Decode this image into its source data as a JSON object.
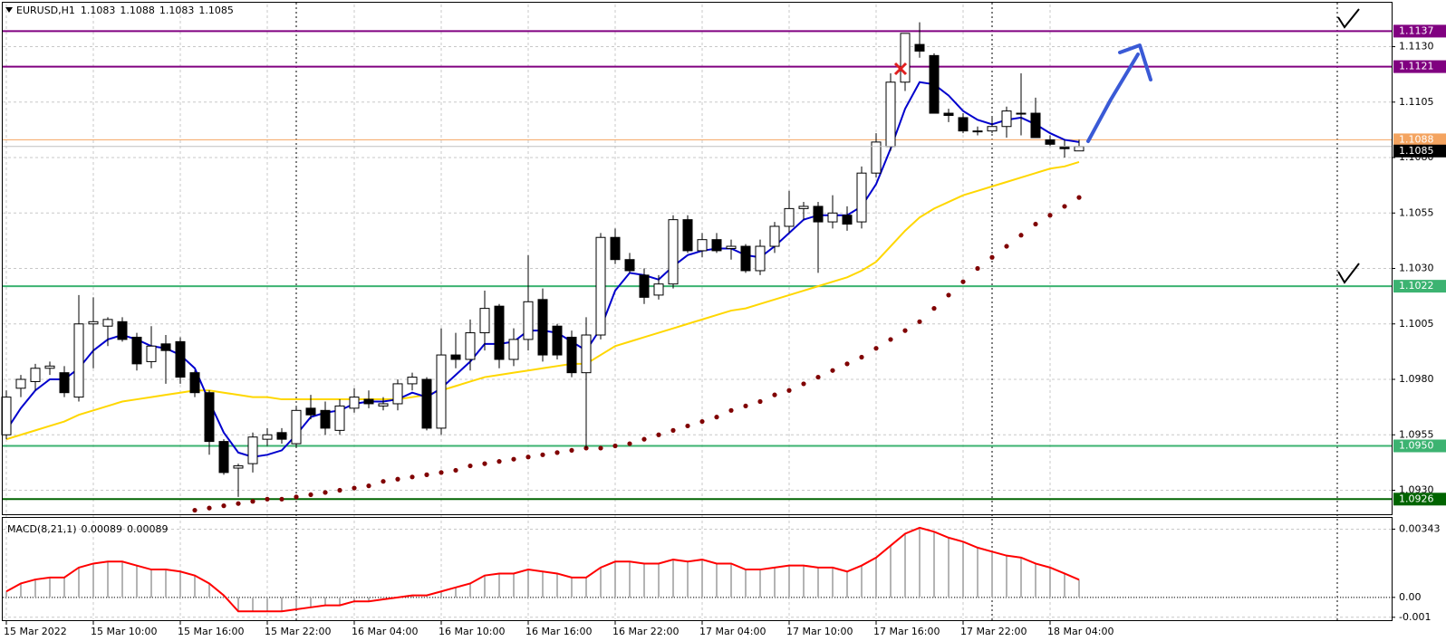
{
  "chart_data": [
    {
      "type": "candlestick",
      "symbol": "EURUSD,H1",
      "categories": [
        "15 Mar 2022",
        null,
        null,
        null,
        null,
        null,
        "15 Mar 10:00",
        null,
        null,
        null,
        null,
        null,
        "15 Mar 16:00",
        null,
        null,
        null,
        null,
        null,
        "15 Mar 22:00",
        null,
        null,
        null,
        null,
        null,
        "16 Mar 04:00",
        null,
        null,
        null,
        null,
        null,
        "16 Mar 10:00",
        null,
        null,
        null,
        null,
        null,
        "16 Mar 16:00",
        null,
        null,
        null,
        null,
        null,
        "16 Mar 22:00",
        null,
        null,
        null,
        null,
        null,
        "17 Mar 04:00",
        null,
        null,
        null,
        null,
        null,
        "17 Mar 10:00",
        null,
        null,
        null,
        null,
        null,
        "17 Mar 16:00",
        null,
        null,
        null,
        null,
        null,
        "17 Mar 22:00",
        null,
        null,
        null,
        null,
        null,
        "18 Mar 04:00",
        null,
        null
      ],
      "open": [
        1.0955,
        1.0976,
        1.0979,
        1.0985,
        1.0983,
        1.0972,
        1.1005,
        1.1004,
        1.1006,
        1.0999,
        1.0988,
        1.0996,
        1.0997,
        1.0983,
        1.0974,
        1.0952,
        1.094,
        1.0942,
        1.0953,
        1.0956,
        1.0951,
        1.0967,
        1.0966,
        1.0957,
        1.0967,
        1.0971,
        1.0968,
        1.0969,
        1.0978,
        1.098,
        1.0958,
        1.0991,
        1.0989,
        1.1001,
        1.1013,
        1.0989,
        1.0998,
        1.1016,
        1.1004,
        1.0999,
        1.0983,
        1.1,
        1.1044,
        1.1034,
        1.1027,
        1.1018,
        1.1023,
        1.1052,
        1.1038,
        1.1043,
        1.1039,
        1.104,
        1.1029,
        1.104,
        1.1049,
        1.1057,
        1.1058,
        1.1051,
        1.1054,
        1.1051,
        1.1073,
        1.1085,
        1.1114,
        1.1131,
        1.1126,
        1.11,
        1.1098,
        1.1092,
        1.1092,
        1.1094,
        1.11,
        1.11,
        1.1088,
        1.1085,
        1.1083
      ],
      "high": [
        1.0975,
        1.0982,
        1.0987,
        1.0988,
        1.0986,
        1.1018,
        1.1017,
        1.1008,
        1.1008,
        1.1001,
        1.1004,
        1.1,
        1.0999,
        1.0984,
        1.0975,
        1.0953,
        1.0942,
        1.0956,
        1.0958,
        1.0958,
        1.0968,
        1.0973,
        1.097,
        1.0971,
        1.0976,
        1.0975,
        1.0972,
        1.098,
        1.0983,
        1.0981,
        1.1003,
        1.1001,
        1.1007,
        1.102,
        1.1014,
        1.1003,
        1.1036,
        1.1021,
        1.1005,
        1.1002,
        1.1008,
        1.1046,
        1.1048,
        1.1037,
        1.103,
        1.1027,
        1.1054,
        1.1054,
        1.1046,
        1.1046,
        1.1043,
        1.1041,
        1.1043,
        1.1051,
        1.1065,
        1.106,
        1.106,
        1.1063,
        1.1058,
        1.1076,
        1.1091,
        1.1118,
        1.1136,
        1.1141,
        1.1127,
        1.1102,
        1.11,
        1.1094,
        1.1098,
        1.1103,
        1.1118,
        1.1107,
        1.109,
        1.1088,
        1.1088
      ],
      "low": [
        1.0953,
        1.0972,
        1.0975,
        1.0982,
        1.0972,
        1.097,
        1.0985,
        1.0995,
        1.0997,
        1.0984,
        1.0985,
        1.0978,
        1.0978,
        1.0972,
        1.0946,
        1.0937,
        1.0927,
        1.0938,
        1.095,
        1.0951,
        1.0949,
        1.0962,
        1.0955,
        1.0955,
        1.0965,
        1.0967,
        1.0966,
        1.0966,
        1.0975,
        1.0957,
        1.0955,
        1.0985,
        1.0984,
        1.0993,
        1.0985,
        1.0986,
        1.0993,
        1.0988,
        1.0989,
        1.0981,
        1.0949,
        1.0998,
        1.1032,
        1.1028,
        1.1014,
        1.1016,
        1.1021,
        1.1037,
        1.1035,
        1.1037,
        1.1034,
        1.1028,
        1.1027,
        1.1037,
        1.1046,
        1.1052,
        1.1028,
        1.1048,
        1.1047,
        1.1048,
        1.1071,
        1.1083,
        1.111,
        1.1125,
        1.11,
        1.1096,
        1.1091,
        1.109,
        1.1091,
        1.1089,
        1.109,
        1.1089,
        1.1085,
        1.108,
        1.1083
      ],
      "close": [
        1.0972,
        1.098,
        1.0985,
        1.0986,
        1.0974,
        1.1005,
        1.1006,
        1.1007,
        1.0998,
        1.0987,
        1.0995,
        1.0993,
        1.0981,
        1.0974,
        1.0952,
        1.0938,
        1.0941,
        1.0954,
        1.0955,
        1.0953,
        1.0966,
        1.0964,
        1.0958,
        1.0968,
        1.0972,
        1.0969,
        1.0969,
        1.0978,
        1.0981,
        1.0958,
        1.0991,
        1.0989,
        1.1001,
        1.1012,
        1.0989,
        1.0998,
        1.1015,
        1.0991,
        1.0991,
        1.0983,
        1.1,
        1.1044,
        1.1034,
        1.1029,
        1.1017,
        1.1023,
        1.1052,
        1.1038,
        1.1043,
        1.1038,
        1.104,
        1.1029,
        1.104,
        1.1049,
        1.1057,
        1.1058,
        1.1051,
        1.1055,
        1.105,
        1.1073,
        1.1087,
        1.1114,
        1.1136,
        1.1128,
        1.11,
        1.1099,
        1.1092,
        1.1092,
        1.1094,
        1.1101,
        1.11,
        1.1089,
        1.1086,
        1.1084,
        1.1085
      ],
      "up_color": "#ffffff",
      "down_color": "#000000",
      "wick_color": "#000000",
      "ma_fast": {
        "color": "#0000cd",
        "values": [
          1.0957,
          1.0967,
          1.0975,
          1.098,
          1.098,
          1.0985,
          1.0993,
          1.0998,
          1.1,
          1.0998,
          1.0995,
          1.0994,
          1.0991,
          1.0985,
          1.097,
          1.0956,
          1.0947,
          1.0945,
          1.0946,
          1.0948,
          1.0955,
          1.0963,
          1.0965,
          1.0966,
          1.0969,
          1.097,
          1.097,
          1.0971,
          1.0974,
          1.0972,
          1.0976,
          1.0982,
          1.0988,
          1.0996,
          1.0996,
          1.0997,
          1.1002,
          1.1002,
          1.1001,
          1.0997,
          1.0993,
          1.1003,
          1.102,
          1.1028,
          1.1027,
          1.1025,
          1.1031,
          1.1036,
          1.1038,
          1.1039,
          1.1039,
          1.1036,
          1.1035,
          1.104,
          1.1046,
          1.1052,
          1.1054,
          1.1054,
          1.1054,
          1.1058,
          1.1068,
          1.1084,
          1.1102,
          1.1114,
          1.1113,
          1.1108,
          1.1101,
          1.1097,
          1.1095,
          1.1097,
          1.1098,
          1.1095,
          1.1091,
          1.1088,
          1.1087
        ]
      },
      "ma_slow": {
        "color": "#ffd700",
        "values": [
          1.0953,
          1.0955,
          1.0957,
          1.0959,
          1.0961,
          1.0964,
          1.0966,
          1.0968,
          1.097,
          1.0971,
          1.0972,
          1.0973,
          1.0974,
          1.0975,
          1.0975,
          1.0974,
          1.0973,
          1.0972,
          1.0972,
          1.0971,
          1.0971,
          1.0971,
          1.0971,
          1.0971,
          1.0971,
          1.0971,
          1.0971,
          1.0971,
          1.0972,
          1.0973,
          1.0975,
          1.0977,
          1.0979,
          1.0981,
          1.0982,
          1.0983,
          1.0984,
          1.0985,
          1.0986,
          1.0987,
          1.0987,
          1.0991,
          1.0995,
          1.0997,
          1.0999,
          1.1001,
          1.1003,
          1.1005,
          1.1007,
          1.1009,
          1.1011,
          1.1012,
          1.1014,
          1.1016,
          1.1018,
          1.102,
          1.1022,
          1.1024,
          1.1026,
          1.1029,
          1.1033,
          1.104,
          1.1047,
          1.1053,
          1.1057,
          1.106,
          1.1063,
          1.1065,
          1.1067,
          1.1069,
          1.1071,
          1.1073,
          1.1075,
          1.1076,
          1.1078
        ]
      },
      "sar": {
        "color": "#800000",
        "values": [
          null,
          null,
          null,
          null,
          null,
          null,
          null,
          null,
          null,
          null,
          null,
          null,
          null,
          1.0921,
          1.0922,
          1.0923,
          1.0924,
          1.0925,
          1.0926,
          1.0926,
          1.0927,
          1.0928,
          1.0929,
          1.093,
          1.0931,
          1.0932,
          1.0934,
          1.0935,
          1.0936,
          1.0937,
          1.0938,
          1.0939,
          1.0941,
          1.0942,
          1.0943,
          1.0944,
          1.0945,
          1.0946,
          1.0947,
          1.0948,
          1.0949,
          1.0949,
          1.095,
          1.0951,
          1.0953,
          1.0955,
          1.0957,
          1.0959,
          1.0961,
          1.0963,
          1.0966,
          1.0968,
          1.097,
          1.0973,
          1.0975,
          1.0978,
          1.0981,
          1.0984,
          1.0987,
          1.099,
          1.0994,
          1.0998,
          1.1002,
          1.1006,
          1.1012,
          1.1018,
          1.1024,
          1.103,
          1.1035,
          1.104,
          1.1045,
          1.105,
          1.1054,
          1.1058,
          1.1062
        ]
      },
      "levels": [
        {
          "value": 1.1137,
          "color": "#800080"
        },
        {
          "value": 1.1121,
          "color": "#800080"
        },
        {
          "value": 1.1022,
          "color": "#3cb371"
        },
        {
          "value": 1.095,
          "label": "1.0950",
          "color": "#3cb371"
        },
        {
          "value": 1.0926,
          "color": "#006400"
        }
      ],
      "ask": {
        "value": 1.1088,
        "color": "#f4a460"
      },
      "ylim": [
        1.092,
        1.1149
      ],
      "yticks": [
        {
          "value": 1.093,
          "label": "1.0930"
        },
        1.0955,
        {
          "value": 1.098,
          "label": "1.0980"
        },
        1.1005,
        {
          "value": 1.103,
          "label": "1.1030"
        },
        1.1055,
        {
          "value": 1.108,
          "label": "1.1080"
        },
        1.1105,
        {
          "value": 1.113,
          "label": "1.1130"
        }
      ],
      "grid": true
    },
    {
      "type": "macd",
      "title": "MACD(8,21,1)",
      "color": "#ff0000",
      "bar_color": "#b4b4b4",
      "values": [
        0.0003,
        0.0007,
        0.0009,
        0.001,
        0.001,
        0.0015,
        0.0017,
        0.0018,
        0.0018,
        0.0016,
        0.0014,
        0.0014,
        0.0013,
        0.0011,
        0.0007,
        0.0001,
        -0.0007,
        -0.0007,
        -0.0007,
        -0.0007,
        -0.0006,
        -0.0005,
        -0.0004,
        -0.0004,
        -0.0002,
        -0.0002,
        -0.0001,
        0,
        0.0001,
        0.0001,
        0.0003,
        0.0005,
        0.0007,
        0.0011,
        0.0012,
        0.0012,
        0.0014,
        0.0013,
        0.0012,
        0.001,
        0.001,
        0.0015,
        0.0018,
        0.0018,
        0.0017,
        0.0017,
        0.0019,
        0.0018,
        0.0019,
        0.0017,
        0.0017,
        0.0014,
        0.0014,
        0.0015,
        0.0016,
        0.0016,
        0.0015,
        0.0015,
        0.0013,
        0.0016,
        0.002,
        0.0026,
        0.0032,
        0.0035,
        0.0033,
        0.003,
        0.0028,
        0.0025,
        0.0023,
        0.0021,
        0.002,
        0.0017,
        0.0015,
        0.0012,
        0.00089
      ],
      "ylim": [
        -0.0011,
        0.00386
      ],
      "yticks": [
        -0.001,
        {
          "value": 0,
          "label": "0.00"
        },
        0.00343
      ],
      "grid": true
    }
  ]
}
